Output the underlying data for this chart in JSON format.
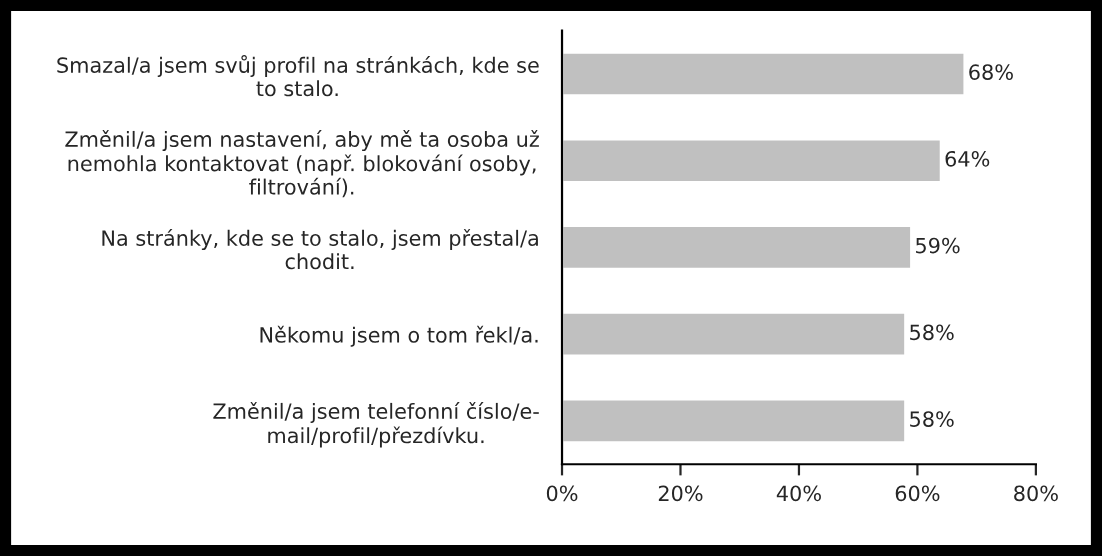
{
  "chart_data": {
    "type": "bar",
    "orientation": "horizontal",
    "categories": [
      "Smazal/a jsem svůj profil na stránkách, kde se\nto stalo.",
      "Změnil/a jsem nastavení, aby mě ta osoba už\nnemohla kontaktovat (např. blokování osoby,\nfiltrování).",
      "Na stránky, kde se to stalo, jsem přestal/a\nchodit.",
      "Někomu jsem o tom řekl/a.",
      "Změnil/a jsem telefonní číslo/e-\nmail/profil/přezdívku."
    ],
    "values": [
      68,
      64,
      59,
      58,
      58
    ],
    "value_labels": [
      "68%",
      "64%",
      "59%",
      "58%",
      "58%"
    ],
    "color": "#c0c0c0",
    "xlim": [
      0,
      80
    ],
    "xticks": [
      {
        "value": 0,
        "label": "0%"
      },
      {
        "value": 20,
        "label": "20%"
      },
      {
        "value": 40,
        "label": "40%"
      },
      {
        "value": 60,
        "label": "60%"
      },
      {
        "value": 80,
        "label": "80%"
      }
    ],
    "grid": false,
    "legend": false
  }
}
